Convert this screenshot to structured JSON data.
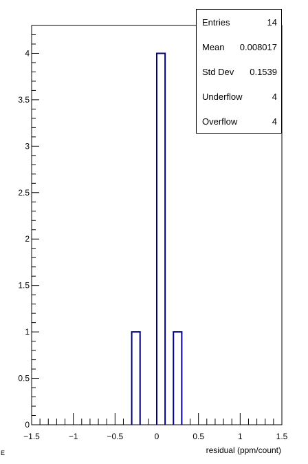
{
  "chart_data": {
    "type": "bar",
    "title": "",
    "xlabel": "residual (ppm/count)",
    "ylabel": "",
    "xlim": [
      -1.5,
      1.5
    ],
    "ylim": [
      0,
      4.3
    ],
    "bin_edges": [
      -0.3,
      -0.2,
      -0.1,
      0.0,
      0.1,
      0.2,
      0.3
    ],
    "values": [
      1,
      0,
      0,
      4,
      0,
      1
    ],
    "line_color": "#000080",
    "x_major_ticks": [
      -1.5,
      -1,
      -0.5,
      0,
      0.5,
      1,
      1.5
    ],
    "x_tick_labels": [
      "−1.5",
      "−1",
      "−0.5",
      "0",
      "0.5",
      "1",
      "1.5"
    ],
    "y_major_ticks": [
      0,
      0.5,
      1,
      1.5,
      2,
      2.5,
      3,
      3.5,
      4
    ],
    "y_tick_labels": [
      "0",
      "0.5",
      "1",
      "1.5",
      "2",
      "2.5",
      "3",
      "3.5",
      "4"
    ],
    "grid": false,
    "legend": "none",
    "stats_box": {
      "placement": "top-right",
      "rows": [
        {
          "label": "Entries",
          "value": "14"
        },
        {
          "label": "Mean",
          "value": "0.008017"
        },
        {
          "label": "Std Dev",
          "value": "0.1539"
        },
        {
          "label": "Underflow",
          "value": "4"
        },
        {
          "label": "Overflow",
          "value": "4"
        }
      ]
    }
  },
  "corner_mark": "E"
}
